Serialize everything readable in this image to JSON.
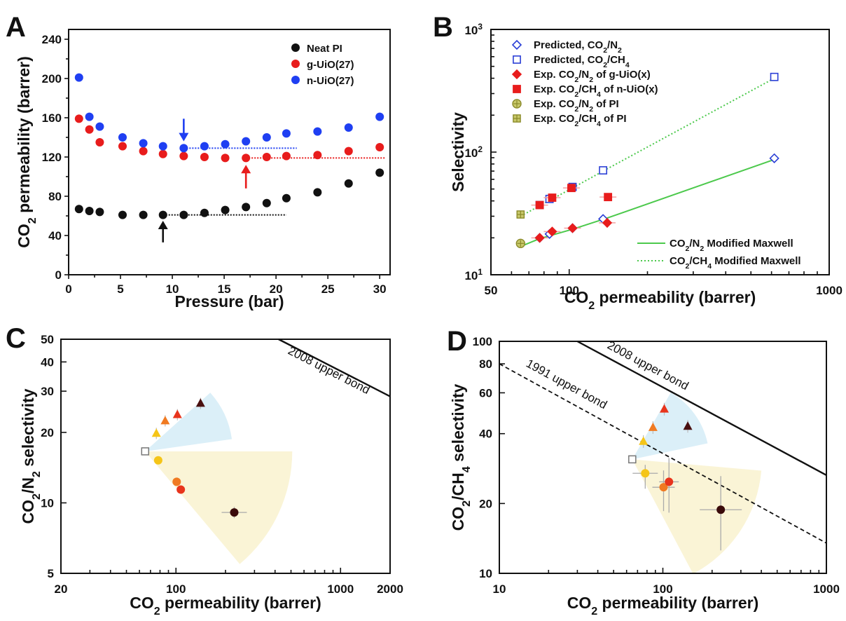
{
  "chart_data": [
    {
      "panel": "A",
      "type": "scatter",
      "xlabel": "Pressure (bar)",
      "ylabel_parts": [
        "CO",
        "2",
        " permeability (barrer)"
      ],
      "xlim": [
        0,
        31
      ],
      "ylim": [
        0,
        250
      ],
      "xticks": [
        0,
        5,
        10,
        15,
        20,
        25,
        30
      ],
      "yticks": [
        0,
        40,
        80,
        120,
        160,
        200,
        240
      ],
      "legend_position": "top-right",
      "series": [
        {
          "name": "Neat PI",
          "color": "#111111",
          "x": [
            1,
            2,
            3,
            5.2,
            7.2,
            9.1,
            11.1,
            13.1,
            15.1,
            17.1,
            19.1,
            21,
            24,
            27,
            30
          ],
          "y": [
            67,
            65,
            64,
            61,
            61,
            61,
            61,
            63,
            66,
            69,
            73,
            78,
            84,
            93,
            104
          ]
        },
        {
          "name": "g-UiO(27)",
          "color": "#e81c1c",
          "x": [
            1,
            2,
            3,
            5.2,
            7.2,
            9.1,
            11.1,
            13.1,
            15.1,
            17.1,
            19.1,
            21,
            24,
            27,
            30
          ],
          "y": [
            159,
            148,
            135,
            131,
            126,
            123,
            121,
            120,
            119,
            119,
            120,
            121,
            122,
            126,
            130
          ]
        },
        {
          "name": "n-UiO(27)",
          "color": "#1f3ff2",
          "x": [
            1,
            2,
            3,
            5.2,
            7.2,
            9.1,
            11.1,
            13.1,
            15.1,
            17.1,
            19.1,
            21,
            24,
            27,
            30
          ],
          "y": [
            201,
            161,
            151,
            140,
            134,
            131,
            129,
            131,
            133,
            136,
            140,
            144,
            146,
            150,
            161
          ]
        }
      ],
      "guides": [
        {
          "color": "#111111",
          "x": [
            9.1,
            21
          ],
          "y": 61
        },
        {
          "color": "#e81c1c",
          "x": [
            17.1,
            30.5
          ],
          "y": 119
        },
        {
          "color": "#1f3ff2",
          "x": [
            11.1,
            22
          ],
          "y": 129
        }
      ],
      "arrows": [
        {
          "color": "#111111",
          "x": 9.1,
          "y_from": 33,
          "y_to": 55
        },
        {
          "color": "#e81c1c",
          "x": 17.1,
          "y_from": 88,
          "y_to": 112
        },
        {
          "color": "#1f3ff2",
          "x": 11.1,
          "y_from": 159,
          "y_to": 136
        }
      ]
    },
    {
      "panel": "B",
      "type": "scatter",
      "xlabel_parts": [
        "CO",
        "2",
        " permeability (barrer)"
      ],
      "ylabel": "Selectivity",
      "xscale": "log",
      "yscale": "log",
      "xlim": [
        50,
        1000
      ],
      "ylim": [
        10,
        1000
      ],
      "xticks": [
        50,
        100,
        1000
      ],
      "xtick_labels": [
        "50",
        "100",
        "1000"
      ],
      "yticks": [
        10,
        100,
        1000
      ],
      "ytick_labels": [
        [
          "10",
          "1"
        ],
        [
          "10",
          "2"
        ],
        [
          "10",
          "3"
        ]
      ],
      "legend_position": "top-left",
      "legend_bottom_position": "bottom-right",
      "series": [
        {
          "name_parts": [
            "Predicted, CO",
            "2",
            "/N",
            "2",
            ""
          ],
          "marker": "diamond-open",
          "color": "#2b3fd6",
          "x": [
            77,
            84,
            103,
            135,
            615
          ],
          "y": [
            20,
            21.5,
            24,
            28.5,
            89
          ]
        },
        {
          "name_parts": [
            "Predicted, CO",
            "2",
            "/CH",
            "4",
            ""
          ],
          "marker": "square-open",
          "color": "#2b3fd6",
          "x": [
            77,
            84,
            103,
            135,
            615
          ],
          "y": [
            37,
            41.5,
            52,
            71,
            410
          ]
        },
        {
          "name": "Exp. CO₂/N₂ of g-UiO(x)",
          "name_parts": [
            "Exp. CO",
            "2",
            "/N",
            "2",
            " of g-UiO(x)"
          ],
          "marker": "diamond-filled",
          "color": "#e81c1c",
          "x": [
            77,
            86,
            103,
            140
          ],
          "y": [
            20,
            22.5,
            24,
            26.5
          ]
        },
        {
          "name_parts": [
            "Exp. CO",
            "2",
            "/CH",
            "4",
            " of n-UiO(x)"
          ],
          "marker": "square-filled",
          "color": "#e81c1c",
          "x": [
            77,
            86,
            102,
            141
          ],
          "y": [
            37,
            42.5,
            51,
            43
          ]
        },
        {
          "name_parts": [
            "Exp. CO",
            "2",
            "/N",
            "2",
            " of PI"
          ],
          "marker": "circle-cross",
          "color": "#8a8a2a",
          "x": [
            65
          ],
          "y": [
            18
          ]
        },
        {
          "name_parts": [
            "Exp. CO",
            "2",
            "/CH",
            "4",
            " of PI"
          ],
          "marker": "square-cross",
          "color": "#8a8a2a",
          "x": [
            65
          ],
          "y": [
            31
          ]
        }
      ],
      "model_lines": [
        {
          "name_parts": [
            "CO",
            "2",
            "/N",
            "2",
            "   Modified Maxwell"
          ],
          "style": "solid",
          "color": "#4cc94c",
          "x": [
            65,
            77,
            103,
            140,
            615
          ],
          "y": [
            17,
            19.7,
            23.5,
            29,
            87
          ]
        },
        {
          "name_parts": [
            "CO",
            "2",
            "/CH",
            "4",
            " Modified Maxwell"
          ],
          "style": "dotted",
          "color": "#4cc94c",
          "x": [
            65,
            77,
            103,
            140,
            615
          ],
          "y": [
            30,
            36.5,
            51,
            73,
            400
          ]
        }
      ]
    },
    {
      "panel": "C",
      "type": "scatter",
      "xlabel_parts": [
        "CO",
        "2",
        " permeability (barrer)"
      ],
      "ylabel_parts": [
        "CO",
        "2",
        "/N",
        "2",
        " selectivity"
      ],
      "xscale": "log",
      "yscale": "log",
      "xlim": [
        20,
        2000
      ],
      "ylim": [
        5,
        50
      ],
      "xticks": [
        20,
        100,
        1000,
        2000
      ],
      "xtick_labels": [
        "20",
        "100",
        "1000",
        "2000"
      ],
      "yticks": [
        5,
        10,
        20,
        30,
        40,
        50
      ],
      "ytick_labels": [
        "5",
        "10",
        "20",
        "30",
        "40",
        "50"
      ],
      "annotation": "2008 upper bond",
      "upper_bound": {
        "x": [
          420,
          2000
        ],
        "y": [
          50,
          28.5
        ]
      },
      "triangles": {
        "x": [
          76,
          86,
          102,
          141
        ],
        "y": [
          19.8,
          22.4,
          23.8,
          26.6
        ],
        "colors": [
          "#f5c518",
          "#f07a22",
          "#e8341c",
          "#4a1010"
        ]
      },
      "circles": {
        "x": [
          78,
          101,
          107,
          226
        ],
        "y": [
          15.2,
          12.3,
          11.4,
          9.1
        ],
        "colors": [
          "#f5c518",
          "#f07a22",
          "#e8341c",
          "#3a0a0a"
        ]
      },
      "pi": {
        "x": [
          65
        ],
        "y": [
          16.6
        ]
      }
    },
    {
      "panel": "D",
      "type": "scatter",
      "xlabel_parts": [
        "CO",
        "2",
        " permeability (barrer)"
      ],
      "ylabel_parts": [
        "CO",
        "2",
        "/CH",
        "4",
        " selectivity"
      ],
      "xscale": "log",
      "yscale": "log",
      "xlim": [
        10,
        1000
      ],
      "ylim": [
        10,
        100
      ],
      "xticks": [
        10,
        100,
        1000
      ],
      "xtick_labels": [
        "10",
        "100",
        "1000"
      ],
      "yticks": [
        10,
        20,
        40,
        60,
        80,
        100
      ],
      "ytick_labels": [
        "10",
        "20",
        "40",
        "60",
        "80",
        "100"
      ],
      "annotations": [
        "2008 upper bond",
        "1991 upper bond"
      ],
      "upper_bound_2008": {
        "x": [
          30,
          1000
        ],
        "y": [
          100,
          26.5
        ]
      },
      "upper_bound_1991": {
        "x": [
          10,
          1000
        ],
        "y": [
          80,
          13.5
        ]
      },
      "triangles": {
        "x": [
          76,
          87,
          102,
          142
        ],
        "y": [
          37,
          42.5,
          51,
          43
        ],
        "colors": [
          "#f5c518",
          "#f07a22",
          "#e8341c",
          "#4a1010"
        ]
      },
      "circles": {
        "x": [
          78,
          101,
          109,
          226
        ],
        "y": [
          27,
          23.5,
          24.8,
          18.8
        ],
        "colors": [
          "#f5c518",
          "#f07a22",
          "#e8341c",
          "#3a0a0a"
        ]
      },
      "pi": {
        "x": [
          65
        ],
        "y": [
          31
        ]
      }
    }
  ]
}
